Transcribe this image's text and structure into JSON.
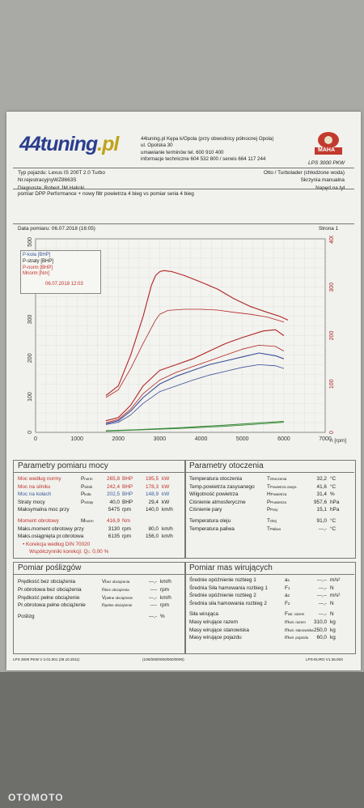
{
  "header": {
    "logo_main": "44tuning",
    "logo_suffix": ".pl",
    "address": [
      "44tuning.pl Kępa k/Opola (przy obwodnicy północnej Opola)",
      "ul. Opolska 30",
      "umawianie terminów tel. 600 910 400",
      "informacje techniczne 604 532 800 / serwis 664 117 244"
    ],
    "maha_brand": "MAHA",
    "maha_model": "LPS 3000 PKW"
  },
  "vehicle": {
    "left": [
      "Typ pojazdu: Lexus IS 200T 2.0 Turbo",
      "Nr.rejestracyjnyWZ8663S",
      "Diagnosta: Robert JM Halicki"
    ],
    "right": [
      "Otto / Turbolader (chłodzone woda)",
      "Skrzynia manualna",
      "Napęd na tył"
    ],
    "note": "pomiar DPP Performance + nowy filtr powietrza 4 bieg vs pomiar seria 4 bieg"
  },
  "measurement": {
    "date": "Data pomiaru: 06.07.2018 (16:05)",
    "page": "Strona 1"
  },
  "chart_data": {
    "type": "line",
    "x_ticks": [
      "0",
      "1000",
      "2000",
      "3000",
      "4000",
      "5000",
      "6000",
      "7000"
    ],
    "xlim": [
      0,
      7000
    ],
    "x_unit": "n [rpm]",
    "y_left_ticks": [
      "0",
      "100",
      "200",
      "300",
      "400",
      "500"
    ],
    "ylim_left": [
      0,
      500
    ],
    "y_right_ticks": [
      "0",
      "100",
      "200",
      "300",
      "400"
    ],
    "ylim_right": [
      0,
      500
    ],
    "legend": [
      "P-koła [BHP]",
      "P-straty [BHP]",
      "P-norm [BHP]",
      "Mnorm [Nm]"
    ],
    "legend_date": "06.07.2018 12:03",
    "series": [
      {
        "name": "Mnorm [Nm]",
        "color": "#b02424",
        "x": [
          1700,
          2000,
          2300,
          2600,
          2800,
          2900,
          3000,
          3100,
          3300,
          3600,
          4000,
          4400,
          4800,
          5200,
          5600,
          5900,
          6100
        ],
        "y": [
          95,
          120,
          200,
          300,
          380,
          405,
          415,
          418,
          415,
          405,
          388,
          370,
          345,
          325,
          310,
          300,
          290
        ]
      },
      {
        "name": "Mnorm (seria)",
        "color": "#b02424",
        "x": [
          1700,
          2000,
          2300,
          2600,
          2900,
          3000,
          3200,
          3600,
          4000,
          4400,
          4800,
          5200,
          5600,
          6000
        ],
        "y": [
          90,
          110,
          165,
          230,
          290,
          305,
          315,
          318,
          318,
          316,
          310,
          305,
          298,
          285
        ]
      },
      {
        "name": "P-norm [BHP]",
        "color": "#b02424",
        "x": [
          1700,
          2000,
          2300,
          2600,
          3000,
          3400,
          3800,
          4200,
          4600,
          5000,
          5500,
          5800,
          6000
        ],
        "y": [
          30,
          38,
          70,
          120,
          160,
          175,
          190,
          210,
          230,
          245,
          262,
          265,
          250
        ]
      },
      {
        "name": "P-norm (seria)",
        "color": "#b02424",
        "x": [
          1700,
          2000,
          2300,
          2600,
          3000,
          3400,
          3800,
          4200,
          4600,
          5000,
          5400,
          5800,
          6000
        ],
        "y": [
          25,
          33,
          60,
          100,
          135,
          155,
          170,
          185,
          200,
          215,
          225,
          222,
          210
        ]
      },
      {
        "name": "P-koła [BHP]",
        "color": "#3a4e9a",
        "x": [
          1700,
          2000,
          2300,
          2600,
          3000,
          3400,
          3800,
          4200,
          4600,
          5000,
          5400,
          5800,
          6000
        ],
        "y": [
          22,
          30,
          55,
          90,
          125,
          145,
          160,
          175,
          185,
          195,
          205,
          198,
          190
        ]
      },
      {
        "name": "P-koła (seria)",
        "color": "#3a4e9a",
        "x": [
          1700,
          2000,
          2300,
          2600,
          3000,
          3400,
          3800,
          4200,
          4600,
          5000,
          5400,
          5800,
          6000
        ],
        "y": [
          20,
          26,
          45,
          75,
          105,
          120,
          135,
          148,
          158,
          168,
          175,
          172,
          165
        ]
      },
      {
        "name": "P-straty [BHP]",
        "color": "#3a8a3a",
        "x": [
          1700,
          2500,
          3500,
          4500,
          5500,
          6000
        ],
        "y": [
          4,
          7,
          12,
          18,
          25,
          28
        ]
      },
      {
        "name": "P-straty (seria)",
        "color": "#3a8a3a",
        "x": [
          1700,
          2500,
          3500,
          4500,
          5500,
          6000
        ],
        "y": [
          3,
          6,
          10,
          15,
          22,
          26
        ]
      }
    ]
  },
  "params": {
    "title": "Parametry pomiaru mocy",
    "rows": [
      {
        "label": "Moc według normy",
        "sym": "P",
        "sub": "norm",
        "v1": "265,8",
        "u1": "BHP",
        "v2": "195,5",
        "u2": "kW"
      },
      {
        "label": "Moc na silniku",
        "sym": "P",
        "sub": "silnik",
        "v1": "242,4",
        "u1": "BHP",
        "v2": "178,3",
        "u2": "kW"
      },
      {
        "label": "Moc na kołach",
        "sym": "P",
        "sub": "koła",
        "v1": "202,5",
        "u1": "BHP",
        "v2": "148,9",
        "u2": "kW"
      },
      {
        "label": "Straty mocy",
        "sym": "P",
        "sub": "straty",
        "v1": "40,0",
        "u1": "BHP",
        "v2": "29,4",
        "u2": "kW"
      },
      {
        "label": "Maksymalna moc przy",
        "sym": "",
        "sub": "",
        "v1": "5475",
        "u1": "rpm",
        "v2": "140,0",
        "u2": "km/h"
      },
      {
        "label": "Moment obrotowy",
        "sym": "M",
        "sub": "norm",
        "v1": "416,9",
        "u1": "Nm",
        "v2": "",
        "u2": ""
      },
      {
        "label": "Maks.moment obrotowy przy",
        "sym": "",
        "sub": "",
        "v1": "3130",
        "u1": "rpm",
        "v2": "80,0",
        "u2": "km/h"
      },
      {
        "label": "Maks.osiągnięta pr.obrotowa",
        "sym": "",
        "sub": "",
        "v1": "6135",
        "u1": "rpm",
        "v2": "156,0",
        "u2": "km/h"
      }
    ],
    "correction": "Korekcja według DIN 70020",
    "coeff_label": "Współczynniki korekcji: Q",
    "coeff_value": "0,00 %"
  },
  "ambient": {
    "title": "Parametry otoczenia",
    "rows": [
      {
        "label": "Temperatura otoczenia",
        "sym": "T",
        "sub": "Otoczenia",
        "val": "32,2",
        "unit": "°C"
      },
      {
        "label": "Temp.powietrza zasysanego",
        "sym": "T",
        "sub": "Powietrza zasys.",
        "val": "41,6",
        "unit": "°C"
      },
      {
        "label": "Wilgotność powietrza",
        "sym": "H",
        "sub": "Powietrza",
        "val": "31,4",
        "unit": "%"
      },
      {
        "label": "Ciśnienie atmosferyczne",
        "sym": "P",
        "sub": "Powietrza",
        "val": "957,6",
        "unit": "hPa"
      },
      {
        "label": "Ciśnienie pary",
        "sym": "P",
        "sub": "Pary",
        "val": "15,1",
        "unit": "hPa"
      },
      {
        "label": "Temperatura oleju",
        "sym": "T",
        "sub": "Olej",
        "val": "91,0",
        "unit": "°C"
      },
      {
        "label": "Temperatura paliwa",
        "sym": "T",
        "sub": "Paliwo",
        "val": "---,-",
        "unit": "°C"
      }
    ]
  },
  "slip": {
    "title": "Pomiar poślizgów",
    "rows": [
      {
        "label": "Prędkość bez obciążenia",
        "sym": "V",
        "sub": "bez obciążenia",
        "val": "---,-",
        "unit": "km/h"
      },
      {
        "label": "Pr.obrotowa bez obciążenia",
        "sym": "n",
        "sub": "bez obciążenia",
        "val": "----",
        "unit": "rpm"
      },
      {
        "label": "Prędkość pełne obciążenie",
        "sym": "V",
        "sub": "pełne obciążenie",
        "val": "---,-",
        "unit": "km/h"
      },
      {
        "label": "Pr.obrotowa pełne obciążenie",
        "sym": "n",
        "sub": "pełne obciążenie",
        "val": "----",
        "unit": "rpm"
      },
      {
        "label": "Poślizg",
        "sym": "",
        "sub": "",
        "val": "---,-",
        "unit": "%"
      }
    ]
  },
  "mass": {
    "title": "Pomiar mas wirujących",
    "rows": [
      {
        "label": "Średnie opóźnienie rozbieg 1",
        "sym": "a",
        "sub": "1",
        "val": "---,--",
        "unit": "m/s²"
      },
      {
        "label": "Średnia Siła hamowania rozbieg 1",
        "sym": "F",
        "sub": "1",
        "val": "---,-",
        "unit": "N"
      },
      {
        "label": "Średnie opóźnienie rozbieg 2",
        "sym": "a",
        "sub": "2",
        "val": "---,--",
        "unit": "m/s²"
      },
      {
        "label": "Średnia siła hamowania rozbieg 2",
        "sym": "F",
        "sub": "2",
        "val": "---,-",
        "unit": "N"
      },
      {
        "label": "Siła wirująca",
        "sym": "F",
        "sub": "wir. razem",
        "val": "---,-",
        "unit": "N"
      },
      {
        "label": "Masy wirujące razem",
        "sym": "m",
        "sub": "wir. razem",
        "val": "310,0",
        "unit": "kg"
      },
      {
        "label": "Masy wirujące stanowiska",
        "sym": "m",
        "sub": "wir. stanowiska",
        "val": "250,0",
        "unit": "kg"
      },
      {
        "label": "Masy wirujące pojazdu",
        "sym": "m",
        "sub": "wir. pojazdu",
        "val": "60,0",
        "unit": "kg"
      }
    ]
  },
  "footer": {
    "left": "LPS 3000 PKW V 2.01.001 (28.10.2011)",
    "center": "(100/000/0000/000/0000)",
    "right": "LPS-EURO V1.36.003"
  },
  "watermark": "OTOMOTO"
}
